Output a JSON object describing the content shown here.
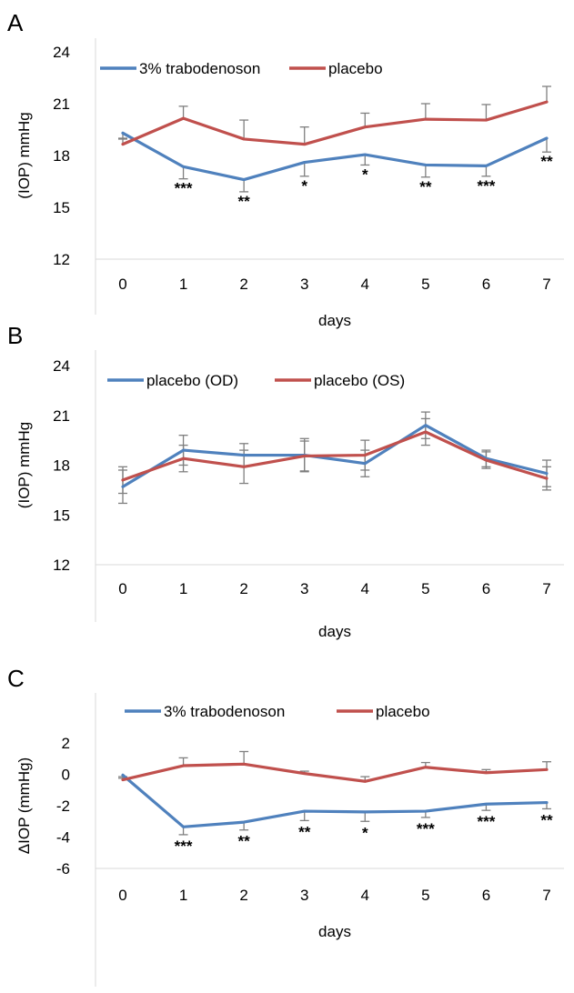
{
  "chart_data": [
    {
      "type": "line",
      "panel_label": "A",
      "categories": [
        "0",
        "1",
        "2",
        "3",
        "4",
        "5",
        "6",
        "7"
      ],
      "xlabel": "days",
      "ylabel": "(IOP) mmHg",
      "ylim": [
        12,
        24
      ],
      "yticks": [
        "12",
        "15",
        "18",
        "21",
        "24"
      ],
      "grid": false,
      "legend": "top",
      "series": [
        {
          "name": "3% trabodenoson",
          "color": "#4f81bd",
          "values": [
            19.3,
            17.35,
            16.6,
            17.6,
            18.05,
            17.45,
            17.4,
            19.0
          ],
          "err": [
            0.3,
            0.7,
            0.7,
            0.8,
            0.6,
            0.7,
            0.6,
            0.8
          ],
          "err_dir": "down",
          "sig": [
            "",
            "***",
            "**",
            "*",
            "*",
            "**",
            "***",
            "**"
          ]
        },
        {
          "name": "placebo",
          "color": "#c0504d",
          "values": [
            18.65,
            20.15,
            18.95,
            18.65,
            19.65,
            20.1,
            20.05,
            21.1
          ],
          "err": [
            0.3,
            0.7,
            1.1,
            1.0,
            0.8,
            0.9,
            0.9,
            0.9
          ],
          "err_dir": "up",
          "sig": [
            "",
            "",
            "",
            "",
            "",
            "",
            "",
            ""
          ]
        }
      ]
    },
    {
      "type": "line",
      "panel_label": "B",
      "categories": [
        "0",
        "1",
        "2",
        "3",
        "4",
        "5",
        "6",
        "7"
      ],
      "xlabel": "days",
      "ylabel": "(IOP) mmHg",
      "ylim": [
        12,
        24
      ],
      "yticks": [
        "12",
        "15",
        "18",
        "21",
        "24"
      ],
      "grid": false,
      "legend": "top",
      "series": [
        {
          "name": "placebo (OD)",
          "color": "#4f81bd",
          "values": [
            16.7,
            18.9,
            18.6,
            18.6,
            18.1,
            20.4,
            18.4,
            17.5
          ],
          "err": [
            1.0,
            0.9,
            0.7,
            1.0,
            0.8,
            0.8,
            0.5,
            0.8
          ],
          "err_dir": "both",
          "sig": [
            "",
            "",
            "",
            "",
            "",
            "",
            "",
            ""
          ]
        },
        {
          "name": "placebo (OS)",
          "color": "#c0504d",
          "values": [
            17.1,
            18.4,
            17.9,
            18.55,
            18.6,
            20.0,
            18.3,
            17.2
          ],
          "err": [
            0.8,
            0.8,
            1.0,
            0.9,
            0.9,
            0.8,
            0.5,
            0.7
          ],
          "err_dir": "both",
          "sig": [
            "",
            "",
            "",
            "",
            "",
            "",
            "",
            ""
          ]
        }
      ]
    },
    {
      "type": "line",
      "panel_label": "C",
      "categories": [
        "0",
        "1",
        "2",
        "3",
        "4",
        "5",
        "6",
        "7"
      ],
      "xlabel": "days",
      "ylabel": "ΔIOP (mmHg)",
      "ylim": [
        -6,
        2
      ],
      "yticks": [
        "-6",
        "-4",
        "-2",
        "0",
        "2"
      ],
      "grid": false,
      "legend": "top",
      "series": [
        {
          "name": "3% trabodenoson",
          "color": "#4f81bd",
          "values": [
            -0.05,
            -3.35,
            -3.05,
            -2.35,
            -2.4,
            -2.35,
            -1.9,
            -1.8
          ],
          "err": [
            0.2,
            0.5,
            0.5,
            0.6,
            0.6,
            0.4,
            0.4,
            0.4
          ],
          "err_dir": "down",
          "sig": [
            "",
            "***",
            "**",
            "**",
            "*",
            "***",
            "***",
            "**"
          ]
        },
        {
          "name": "placebo",
          "color": "#c0504d",
          "values": [
            -0.35,
            0.55,
            0.65,
            0.05,
            -0.45,
            0.45,
            0.1,
            0.3
          ],
          "err": [
            0.2,
            0.5,
            0.8,
            0.15,
            0.3,
            0.3,
            0.2,
            0.5
          ],
          "err_dir": "up",
          "sig": [
            "",
            "",
            "",
            "",
            "",
            "",
            "",
            ""
          ]
        }
      ]
    }
  ]
}
